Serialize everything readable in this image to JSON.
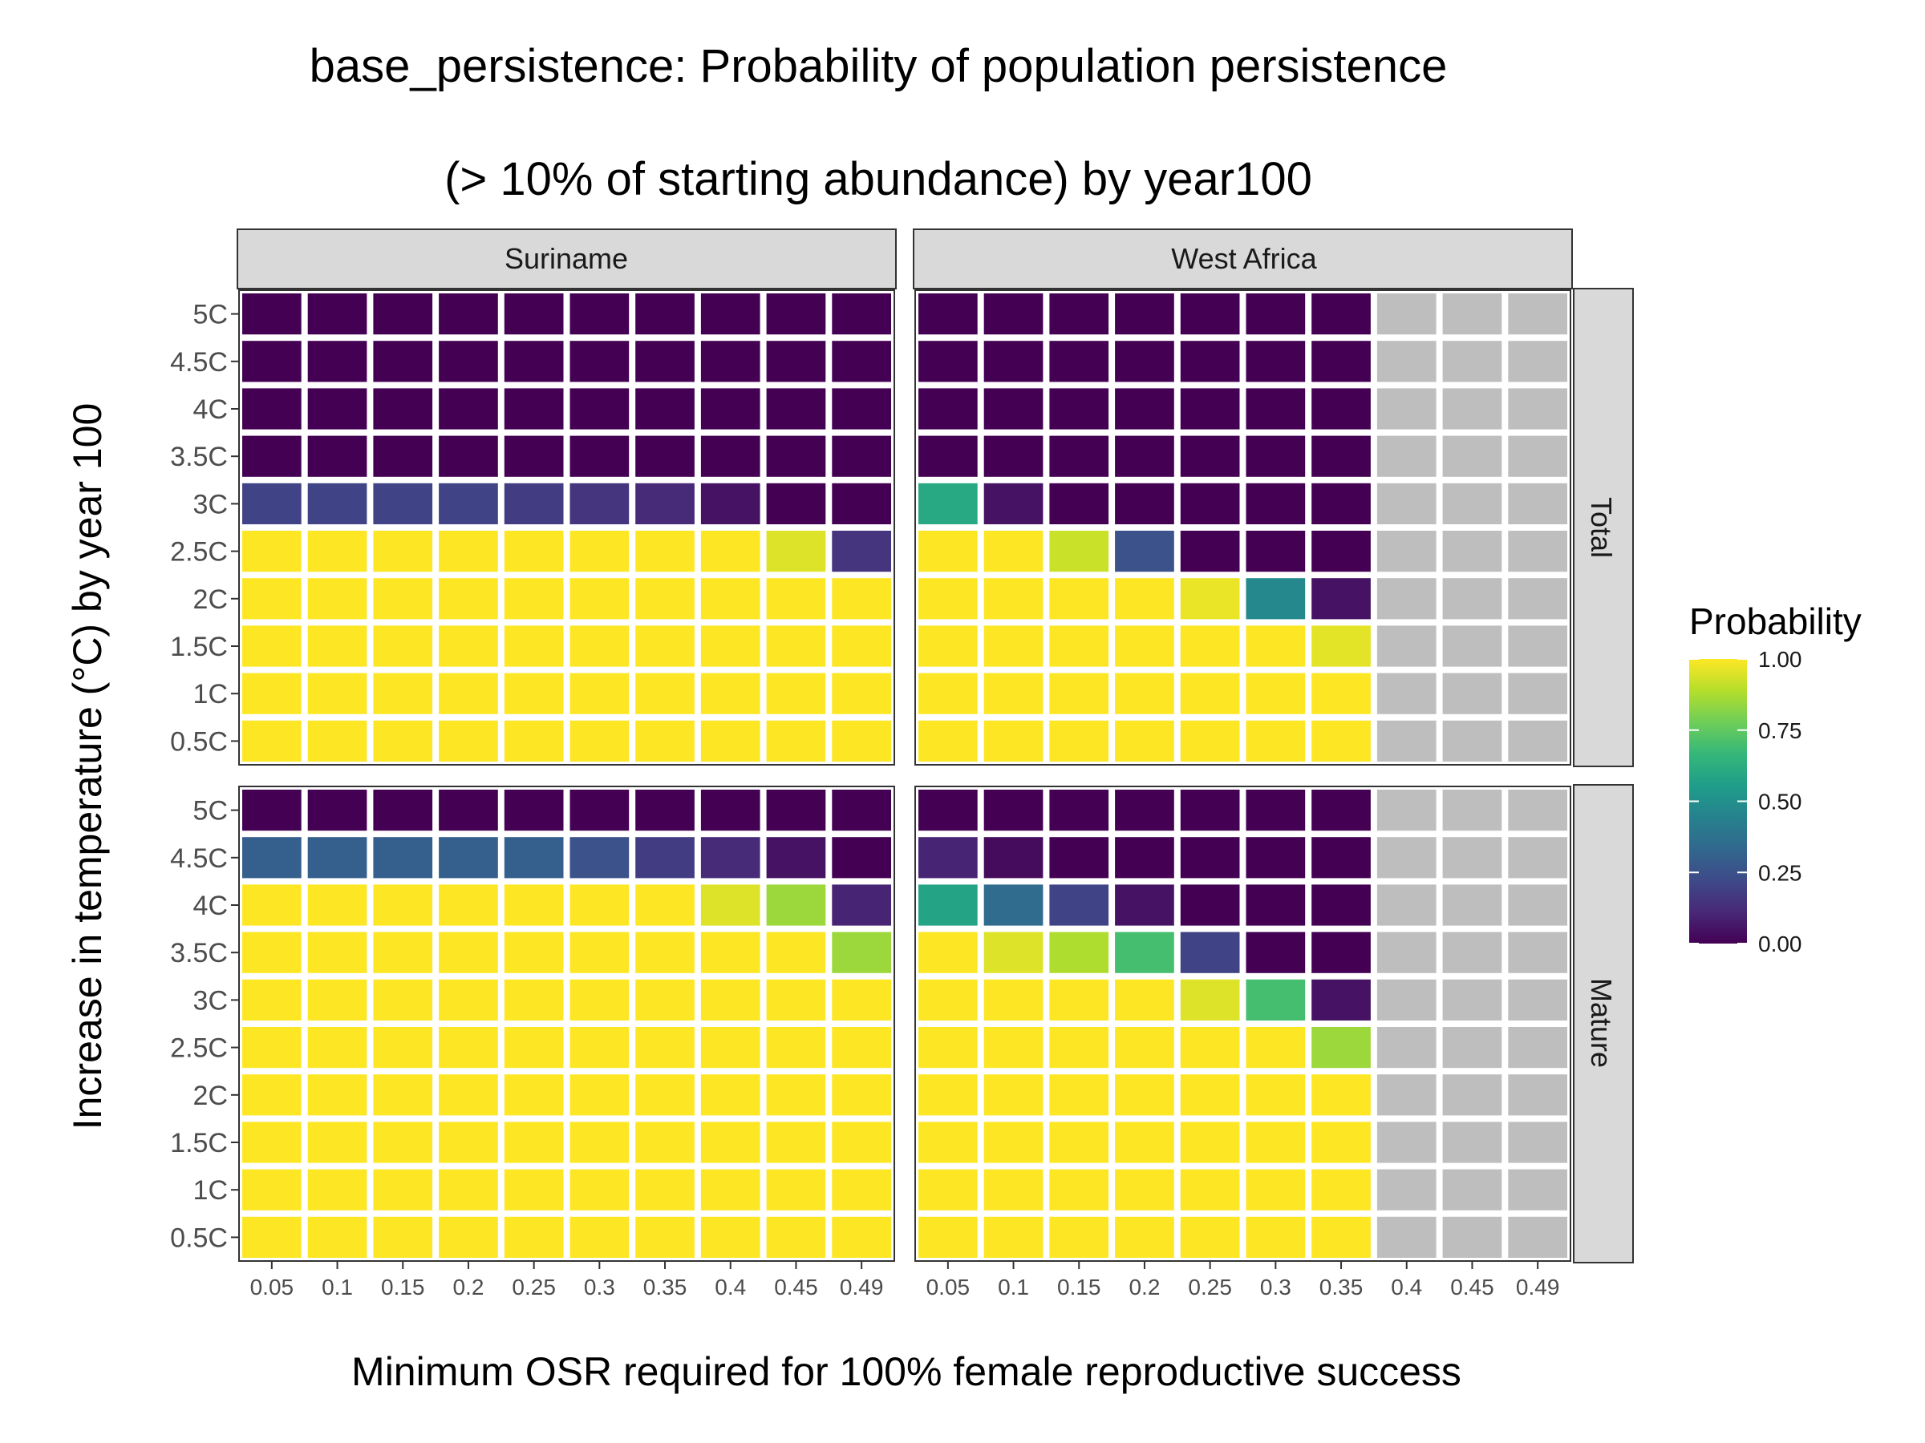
{
  "chart_data": {
    "type": "heatmap",
    "title_lines": [
      "base_persistence: Probability of population persistence",
      "(> 10% of starting abundance) by year100"
    ],
    "xlabel": "Minimum OSR required for 100% female reproductive success",
    "ylabel": "Increase in temperature (°C) by year 100",
    "x_categories": [
      "0.05",
      "0.1",
      "0.15",
      "0.2",
      "0.25",
      "0.3",
      "0.35",
      "0.4",
      "0.45",
      "0.49"
    ],
    "y_categories": [
      "0.5C",
      "1C",
      "1.5C",
      "2C",
      "2.5C",
      "3C",
      "3.5C",
      "4C",
      "4.5C",
      "5C"
    ],
    "facet_columns": [
      "Suriname",
      "West Africa"
    ],
    "facet_rows": [
      "Total",
      "Mature"
    ],
    "legend": {
      "title": "Probability",
      "ticks": [
        "0.00",
        "0.25",
        "0.50",
        "0.75",
        "1.00"
      ],
      "range": [
        0,
        1
      ],
      "palette": "viridis",
      "na_color": "#bebebe"
    },
    "value_note_rows_top_to_bottom": "values arrays list rows from 5C (top) down to 0.5C (bottom); null = no data (grey)",
    "panels": [
      {
        "column": "Suriname",
        "row": "Total",
        "values": [
          [
            0,
            0,
            0,
            0,
            0,
            0,
            0,
            0,
            0,
            0
          ],
          [
            0,
            0,
            0,
            0,
            0,
            0,
            0,
            0,
            0,
            0
          ],
          [
            0,
            0,
            0,
            0,
            0,
            0,
            0,
            0,
            0,
            0
          ],
          [
            0,
            0,
            0,
            0,
            0,
            0,
            0,
            0,
            0,
            0
          ],
          [
            0.2,
            0.2,
            0.2,
            0.2,
            0.18,
            0.15,
            0.12,
            0.05,
            0,
            0
          ],
          [
            1,
            1,
            1,
            1,
            1,
            1,
            1,
            1,
            0.95,
            0.15
          ],
          [
            1,
            1,
            1,
            1,
            1,
            1,
            1,
            1,
            1,
            1
          ],
          [
            1,
            1,
            1,
            1,
            1,
            1,
            1,
            1,
            1,
            1
          ],
          [
            1,
            1,
            1,
            1,
            1,
            1,
            1,
            1,
            1,
            1
          ],
          [
            1,
            1,
            1,
            1,
            1,
            1,
            1,
            1,
            1,
            1
          ]
        ]
      },
      {
        "column": "West Africa",
        "row": "Total",
        "values": [
          [
            0,
            0,
            0,
            0,
            0,
            0,
            0,
            null,
            null,
            null
          ],
          [
            0,
            0,
            0,
            0,
            0,
            0,
            0,
            null,
            null,
            null
          ],
          [
            0,
            0,
            0,
            0,
            0,
            0,
            0,
            null,
            null,
            null
          ],
          [
            0,
            0,
            0,
            0,
            0,
            0,
            0,
            null,
            null,
            null
          ],
          [
            0.6,
            0.05,
            0,
            0,
            0,
            0,
            0,
            null,
            null,
            null
          ],
          [
            1,
            1,
            0.92,
            0.25,
            0,
            0,
            0,
            null,
            null,
            null
          ],
          [
            1,
            1,
            1,
            1,
            0.97,
            0.47,
            0.05,
            null,
            null,
            null
          ],
          [
            1,
            1,
            1,
            1,
            1,
            1,
            0.96,
            null,
            null,
            null
          ],
          [
            1,
            1,
            1,
            1,
            1,
            1,
            1,
            null,
            null,
            null
          ],
          [
            1,
            1,
            1,
            1,
            1,
            1,
            1,
            null,
            null,
            null
          ]
        ]
      },
      {
        "column": "Suriname",
        "row": "Mature",
        "values": [
          [
            0,
            0,
            0,
            0,
            0,
            0,
            0,
            0,
            0,
            0
          ],
          [
            0.3,
            0.3,
            0.3,
            0.3,
            0.3,
            0.25,
            0.18,
            0.12,
            0.05,
            0
          ],
          [
            1,
            1,
            1,
            1,
            1,
            1,
            1,
            0.95,
            0.85,
            0.1
          ],
          [
            1,
            1,
            1,
            1,
            1,
            1,
            1,
            1,
            1,
            0.85
          ],
          [
            1,
            1,
            1,
            1,
            1,
            1,
            1,
            1,
            1,
            1
          ],
          [
            1,
            1,
            1,
            1,
            1,
            1,
            1,
            1,
            1,
            1
          ],
          [
            1,
            1,
            1,
            1,
            1,
            1,
            1,
            1,
            1,
            1
          ],
          [
            1,
            1,
            1,
            1,
            1,
            1,
            1,
            1,
            1,
            1
          ],
          [
            1,
            1,
            1,
            1,
            1,
            1,
            1,
            1,
            1,
            1
          ],
          [
            1,
            1,
            1,
            1,
            1,
            1,
            1,
            1,
            1,
            1
          ]
        ]
      },
      {
        "column": "West Africa",
        "row": "Mature",
        "values": [
          [
            0,
            0,
            0,
            0,
            0,
            0,
            0,
            null,
            null,
            null
          ],
          [
            0.1,
            0.03,
            0,
            0,
            0,
            0,
            0,
            null,
            null,
            null
          ],
          [
            0.58,
            0.35,
            0.2,
            0.05,
            0,
            0,
            0,
            null,
            null,
            null
          ],
          [
            1,
            0.95,
            0.88,
            0.7,
            0.2,
            0,
            0,
            null,
            null,
            null
          ],
          [
            1,
            1,
            1,
            1,
            0.95,
            0.7,
            0.05,
            null,
            null,
            null
          ],
          [
            1,
            1,
            1,
            1,
            1,
            1,
            0.85,
            null,
            null,
            null
          ],
          [
            1,
            1,
            1,
            1,
            1,
            1,
            1,
            null,
            null,
            null
          ],
          [
            1,
            1,
            1,
            1,
            1,
            1,
            1,
            null,
            null,
            null
          ],
          [
            1,
            1,
            1,
            1,
            1,
            1,
            1,
            null,
            null,
            null
          ],
          [
            1,
            1,
            1,
            1,
            1,
            1,
            1,
            null,
            null,
            null
          ]
        ]
      }
    ]
  }
}
